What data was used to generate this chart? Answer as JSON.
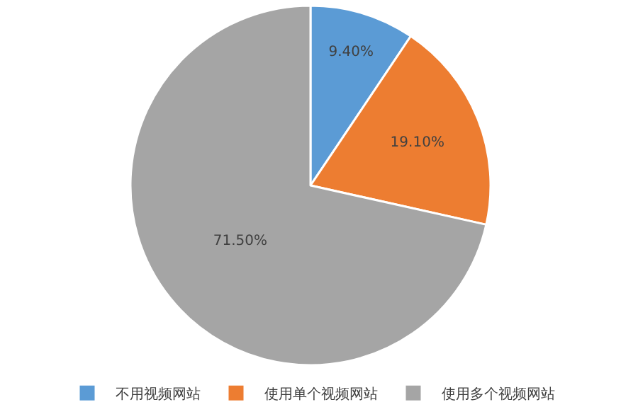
{
  "chart_data": {
    "type": "pie",
    "categories": [
      "不用视频网站",
      "使用单个视频网站",
      "使用多个视频网站"
    ],
    "values": [
      9.4,
      19.1,
      71.5
    ],
    "colors": [
      "#5b9bd5",
      "#ed7d31",
      "#a5a5a5"
    ],
    "value_labels": [
      "9.40%",
      "19.10%",
      "71.50%"
    ],
    "legend": "bottom"
  }
}
